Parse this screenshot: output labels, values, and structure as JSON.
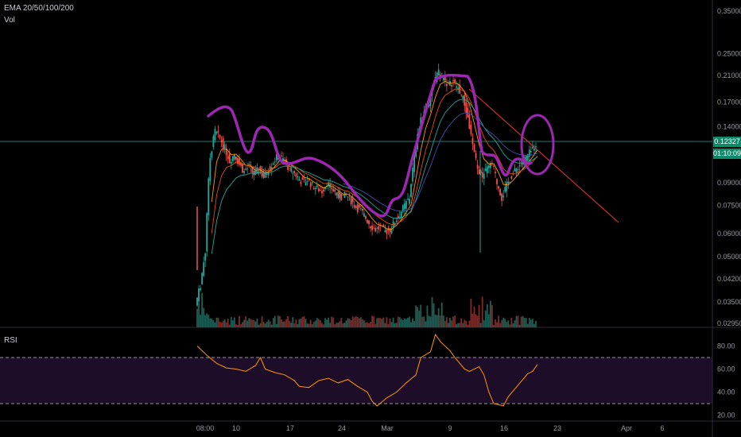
{
  "indicators": {
    "ema_label": "EMA 20/50/100/200",
    "vol_label": "Vol",
    "rsi_label": "RSI"
  },
  "price_badge": {
    "price": "0.12327",
    "countdown": "01:10:09"
  },
  "colors": {
    "up": "#26a69a",
    "down": "#ef5350",
    "drawing": "#9c27b0",
    "trendline": "#e53935",
    "ema20": "#ff9800",
    "ema50": "#e65100",
    "ema100": "#26a69a",
    "ema200": "#3f51b5",
    "rsi": "#ff9800",
    "rsi_band": "#1e0d28",
    "price_line": "#26a69a"
  },
  "chart_data": {
    "type": "candlestick",
    "y_scale": "log",
    "y_ticks": [
      "0.35000",
      "0.25000",
      "0.21000",
      "0.17000",
      "0.14000",
      "0.09000",
      "0.07500",
      "0.06000",
      "0.05000",
      "0.04200",
      "0.03500",
      "0.02950"
    ],
    "x_ticks": [
      "08:00",
      "10",
      "17",
      "24",
      "Mar",
      "9",
      "16",
      "23",
      "Apr",
      "6"
    ],
    "last_price": 0.12327,
    "ema_periods": [
      20,
      50,
      100,
      200
    ],
    "rsi_ticks": [
      "80.00",
      "60.00",
      "40.00",
      "20.00"
    ],
    "rsi_bands": [
      70,
      30
    ],
    "price_path": [
      [
        0,
        0.034
      ],
      [
        1,
        0.04
      ],
      [
        2,
        0.052
      ],
      [
        3,
        0.11
      ],
      [
        4,
        0.135
      ],
      [
        5,
        0.128
      ],
      [
        6,
        0.118
      ],
      [
        7,
        0.107
      ],
      [
        8,
        0.113
      ],
      [
        9,
        0.104
      ],
      [
        10,
        0.098
      ],
      [
        11,
        0.102
      ],
      [
        12,
        0.096
      ],
      [
        13,
        0.1
      ],
      [
        14,
        0.094
      ],
      [
        15,
        0.1
      ],
      [
        16,
        0.106
      ],
      [
        17,
        0.112
      ],
      [
        18,
        0.108
      ],
      [
        19,
        0.102
      ],
      [
        20,
        0.098
      ],
      [
        21,
        0.094
      ],
      [
        22,
        0.09
      ],
      [
        23,
        0.092
      ],
      [
        24,
        0.088
      ],
      [
        25,
        0.086
      ],
      [
        26,
        0.084
      ],
      [
        27,
        0.09
      ],
      [
        28,
        0.086
      ],
      [
        29,
        0.082
      ],
      [
        30,
        0.08
      ],
      [
        31,
        0.082
      ],
      [
        32,
        0.078
      ],
      [
        33,
        0.074
      ],
      [
        34,
        0.072
      ],
      [
        35,
        0.068
      ],
      [
        36,
        0.064
      ],
      [
        37,
        0.062
      ],
      [
        38,
        0.063
      ],
      [
        39,
        0.061
      ],
      [
        40,
        0.062
      ],
      [
        41,
        0.066
      ],
      [
        42,
        0.07
      ],
      [
        43,
        0.075
      ],
      [
        44,
        0.08
      ],
      [
        45,
        0.11
      ],
      [
        46,
        0.14
      ],
      [
        47,
        0.16
      ],
      [
        48,
        0.17
      ],
      [
        49,
        0.2
      ],
      [
        50,
        0.215
      ],
      [
        51,
        0.205
      ],
      [
        52,
        0.195
      ],
      [
        53,
        0.2
      ],
      [
        54,
        0.19
      ],
      [
        55,
        0.175
      ],
      [
        56,
        0.15
      ],
      [
        57,
        0.12
      ],
      [
        58,
        0.1
      ],
      [
        59,
        0.095
      ],
      [
        60,
        0.1
      ],
      [
        61,
        0.105
      ],
      [
        62,
        0.09
      ],
      [
        63,
        0.08
      ],
      [
        64,
        0.088
      ],
      [
        65,
        0.095
      ],
      [
        66,
        0.1
      ],
      [
        67,
        0.105
      ],
      [
        68,
        0.11
      ],
      [
        69,
        0.115
      ],
      [
        70,
        0.12327
      ]
    ],
    "rsi_path": [
      [
        0,
        80
      ],
      [
        2,
        72
      ],
      [
        4,
        65
      ],
      [
        6,
        61
      ],
      [
        8,
        60
      ],
      [
        10,
        58
      ],
      [
        12,
        63
      ],
      [
        13,
        70
      ],
      [
        14,
        60
      ],
      [
        16,
        57
      ],
      [
        18,
        55
      ],
      [
        20,
        50
      ],
      [
        21,
        45
      ],
      [
        23,
        44
      ],
      [
        25,
        50
      ],
      [
        27,
        52
      ],
      [
        29,
        48
      ],
      [
        31,
        51
      ],
      [
        33,
        45
      ],
      [
        35,
        40
      ],
      [
        36,
        32
      ],
      [
        37,
        28
      ],
      [
        39,
        35
      ],
      [
        41,
        40
      ],
      [
        43,
        48
      ],
      [
        45,
        55
      ],
      [
        46,
        70
      ],
      [
        48,
        75
      ],
      [
        49,
        90
      ],
      [
        50,
        84
      ],
      [
        52,
        76
      ],
      [
        53,
        70
      ],
      [
        55,
        60
      ],
      [
        56,
        58
      ],
      [
        58,
        62
      ],
      [
        59,
        55
      ],
      [
        60,
        40
      ],
      [
        61,
        30
      ],
      [
        63,
        28
      ],
      [
        64,
        36
      ],
      [
        66,
        46
      ],
      [
        68,
        56
      ],
      [
        69,
        58
      ],
      [
        70,
        64
      ]
    ]
  }
}
